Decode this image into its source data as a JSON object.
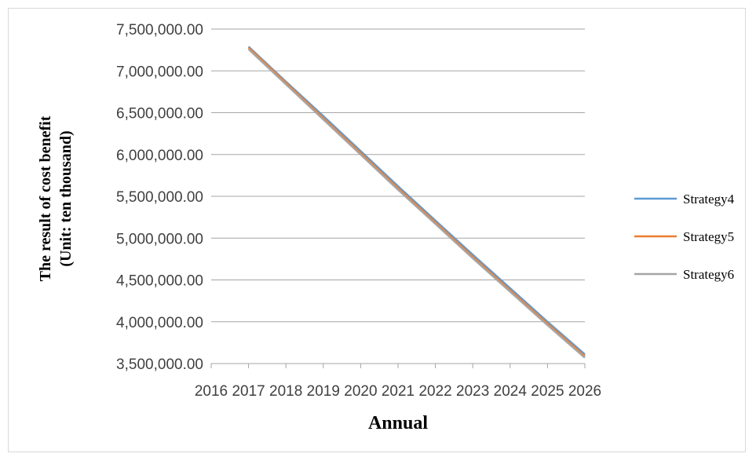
{
  "chart_data": {
    "type": "line",
    "title": "",
    "xlabel": "Annual",
    "ylabel_lines": [
      "The result of cost benefit",
      "(Unit:  ten thousand)"
    ],
    "x_ticks": [
      "2016",
      "2017",
      "2018",
      "2019",
      "2020",
      "2021",
      "2022",
      "2023",
      "2024",
      "2025",
      "2026"
    ],
    "y_ticks": [
      "3,500,000.00",
      "4,000,000.00",
      "4,500,000.00",
      "5,000,000.00",
      "5,500,000.00",
      "6,000,000.00",
      "6,500,000.00",
      "7,000,000.00",
      "7,500,000.00"
    ],
    "xlim": [
      2016,
      2026
    ],
    "ylim": [
      3500000,
      7500000
    ],
    "grid": true,
    "legend_position": "right",
    "series": [
      {
        "name": "Strategy4",
        "color": "#5b9bd5",
        "x": [
          2017,
          2018,
          2019,
          2020,
          2021,
          2022,
          2023,
          2024,
          2025,
          2026
        ],
        "y": [
          7290000,
          6870000,
          6460000,
          6040000,
          5620000,
          5210000,
          4800000,
          4400000,
          4000000,
          3610000
        ]
      },
      {
        "name": "Strategy5",
        "color": "#ed7d31",
        "x": [
          2017,
          2018,
          2019,
          2020,
          2021,
          2022,
          2023,
          2024,
          2025,
          2026
        ],
        "y": [
          7280000,
          6860000,
          6440000,
          6020000,
          5600000,
          5190000,
          4780000,
          4380000,
          3980000,
          3590000
        ]
      },
      {
        "name": "Strategy6",
        "color": "#a5a5a5",
        "x": [
          2017,
          2018,
          2019,
          2020,
          2021,
          2022,
          2023,
          2024,
          2025,
          2026
        ],
        "y": [
          7260000,
          6840000,
          6420000,
          6000000,
          5580000,
          5170000,
          4760000,
          4360000,
          3960000,
          3570000
        ]
      }
    ]
  }
}
